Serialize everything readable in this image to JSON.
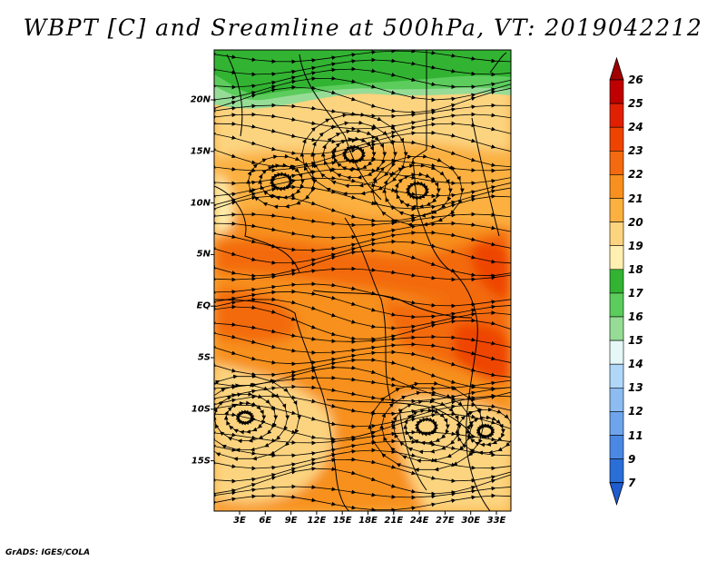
{
  "title": "WBPT [C] and Sreamline at 500hPa, VT: 2019042212",
  "credit": "GrADS: IGES/COLA",
  "latitude_labels": [
    "20N",
    "15N",
    "10N",
    "5N",
    "EQ",
    "5S",
    "10S",
    "15S"
  ],
  "longitude_labels": [
    "3E",
    "6E",
    "9E",
    "12E",
    "15E",
    "18E",
    "21E",
    "24E",
    "27E",
    "30E",
    "33E"
  ],
  "colorbar": {
    "labels": [
      "26",
      "25",
      "24",
      "23",
      "22",
      "21",
      "20",
      "19",
      "18",
      "17",
      "16",
      "15",
      "14",
      "13",
      "12",
      "11",
      "9",
      "7"
    ],
    "colors": [
      "#c00000",
      "#e02000",
      "#ee4400",
      "#f36a10",
      "#f7901e",
      "#fbb040",
      "#fcd480",
      "#fef0b0",
      "#32b432",
      "#5ccc5c",
      "#96dc96",
      "#e6f7f7",
      "#b0d7f7",
      "#8cbcf0",
      "#6ea4ec",
      "#4a88e4",
      "#2a6ed8"
    ],
    "top_arrow_color": "#a00000",
    "bottom_arrow_color": "#1e5cd0"
  },
  "map_colors": {
    "green_dark": "#32b432",
    "green_mid": "#5ccc5c",
    "green_light": "#96dc96",
    "yellow_pale": "#fef0b0",
    "yellow": "#fcd480",
    "orange_light": "#fbb040",
    "orange": "#f7901e",
    "orange_dark": "#f36a10",
    "red": "#ee4400"
  }
}
